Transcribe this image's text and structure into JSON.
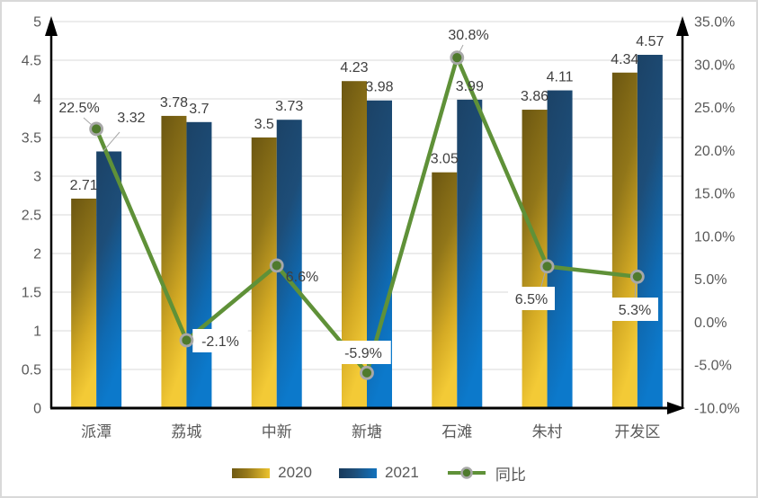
{
  "chart_data": {
    "type": "bar",
    "subtype": "clustered-bar-with-line-on-secondary-axis",
    "title": "",
    "categories": [
      "派潭",
      "荔城",
      "中新",
      "新塘",
      "石滩",
      "朱村",
      "开发区"
    ],
    "series": [
      {
        "name": "2020",
        "chart": "bar",
        "axis": "left",
        "values": [
          2.71,
          3.78,
          3.5,
          4.23,
          3.05,
          3.86,
          4.34
        ],
        "labels": [
          "2.71",
          "3.78",
          "3.5",
          "4.23",
          "3.05",
          "3.86",
          "4.34"
        ]
      },
      {
        "name": "2021",
        "chart": "bar",
        "axis": "left",
        "values": [
          3.32,
          3.7,
          3.73,
          3.98,
          3.99,
          4.11,
          4.57
        ],
        "labels": [
          "3.32",
          "3.7",
          "3.73",
          "3.98",
          "3.99",
          "4.11",
          "4.57"
        ]
      },
      {
        "name": "同比",
        "chart": "line",
        "axis": "right",
        "values": [
          22.5,
          -2.1,
          6.6,
          -5.9,
          30.8,
          6.5,
          5.3
        ],
        "labels": [
          "22.5%",
          "-2.1%",
          "6.6%",
          "-5.9%",
          "30.8%",
          "6.5%",
          "5.3%"
        ]
      }
    ],
    "left_axis": {
      "min": 0,
      "max": 5,
      "step": 0.5,
      "tick_labels": [
        "0",
        "0.5",
        "1",
        "1.5",
        "2",
        "2.5",
        "3",
        "3.5",
        "4",
        "4.5",
        "5"
      ]
    },
    "right_axis": {
      "min": -10,
      "max": 35,
      "step": 5,
      "tick_labels": [
        "-10.0%",
        "-5.0%",
        "0.0%",
        "5.0%",
        "10.0%",
        "15.0%",
        "20.0%",
        "25.0%",
        "30.0%",
        "35.0%"
      ]
    },
    "grid": true,
    "legend_position": "bottom",
    "legend": [
      "2020",
      "2021",
      "同比"
    ]
  },
  "colors": {
    "bar2020_stops": [
      "#6b5611",
      "#917619",
      "#d4aa24",
      "#f3ca36"
    ],
    "bar2021_stops": [
      "#1b4266",
      "#1d4d78",
      "#0f6ab2",
      "#0c79cb"
    ],
    "line": "#5f9138",
    "marker_fill": "#4f7a2d",
    "marker_ring": "#a8a8a8",
    "grid": "#d9d9d9",
    "axis": "#000000",
    "tick_text": "#595959",
    "label_text": "#404040",
    "label_box": "#ffffff",
    "leader": "#a6a6a6"
  }
}
